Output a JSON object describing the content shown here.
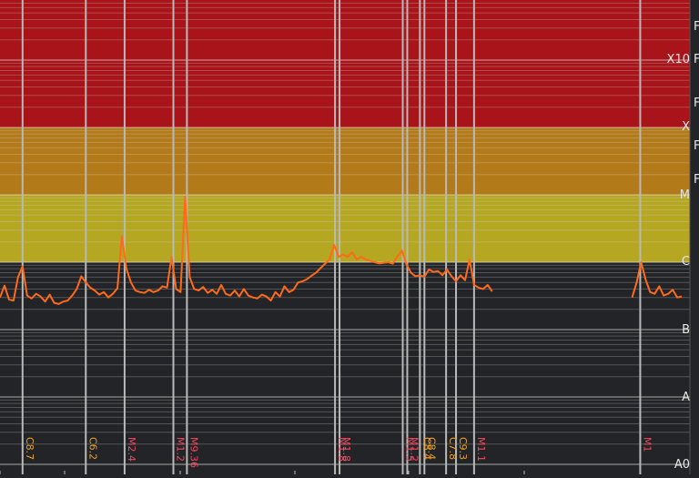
{
  "chart_data": {
    "type": "line",
    "title": "",
    "xlabel": "",
    "ylabel": "",
    "y_scale": "log",
    "yaxis_classes": [
      "A0",
      "A",
      "B",
      "C",
      "M",
      "X",
      "X10"
    ],
    "right_edge_letters": [
      "F",
      "F",
      "F",
      "F",
      "F"
    ],
    "class_bands": [
      {
        "class": "M",
        "color": "#b5a722"
      },
      {
        "class": "X",
        "color": "#b37a1a"
      },
      {
        "class": "X10",
        "color": "#a8141a"
      }
    ],
    "series": [
      {
        "color": "#ff6a1a",
        "segments": [
          [
            [
              0,
              "C3.0"
            ],
            [
              1,
              "C4.5"
            ],
            [
              2,
              "C2.8"
            ],
            [
              3,
              "C2.7"
            ],
            [
              4,
              "C6.0"
            ],
            [
              5,
              "C8.7"
            ],
            [
              6,
              "C3.2"
            ],
            [
              7,
              "C2.9"
            ],
            [
              8,
              "C3.4"
            ],
            [
              9,
              "C3.1"
            ],
            [
              10,
              "C2.6"
            ],
            [
              11,
              "C3.3"
            ],
            [
              12,
              "C2.5"
            ],
            [
              13,
              "C2.4"
            ],
            [
              14,
              "C2.6"
            ],
            [
              15,
              "C2.7"
            ],
            [
              16,
              "C3.2"
            ],
            [
              17,
              "C4.0"
            ],
            [
              18,
              "C6.2"
            ],
            [
              19,
              "C5.0"
            ],
            [
              20,
              "C4.2"
            ],
            [
              21,
              "C3.8"
            ],
            [
              22,
              "C3.3"
            ],
            [
              23,
              "C3.6"
            ],
            [
              24,
              "C3.0"
            ],
            [
              25,
              "C3.4"
            ],
            [
              26,
              "C4.1"
            ],
            [
              27,
              "M2.4"
            ],
            [
              28,
              "C8.0"
            ],
            [
              29,
              "C5.0"
            ],
            [
              30,
              "C3.8"
            ],
            [
              31,
              "C3.6"
            ],
            [
              32,
              "C3.5"
            ],
            [
              33,
              "C3.9"
            ],
            [
              34,
              "C3.6"
            ],
            [
              35,
              "C3.8"
            ],
            [
              36,
              "C4.4"
            ],
            [
              37,
              "C4.2"
            ],
            [
              38,
              "M1.2"
            ],
            [
              39,
              "C4.0"
            ],
            [
              40,
              "C3.6"
            ],
            [
              41,
              "M9.36"
            ],
            [
              42,
              "C6.0"
            ],
            [
              43,
              "C4.0"
            ],
            [
              44,
              "C3.8"
            ],
            [
              45,
              "C4.3"
            ],
            [
              46,
              "C3.5"
            ],
            [
              47,
              "C3.9"
            ],
            [
              48,
              "C3.4"
            ],
            [
              49,
              "C4.6"
            ],
            [
              50,
              "C3.4"
            ],
            [
              51,
              "C3.2"
            ],
            [
              52,
              "C3.8"
            ],
            [
              53,
              "C3.1"
            ],
            [
              54,
              "C4.0"
            ],
            [
              55,
              "C3.2"
            ],
            [
              56,
              "C3.0"
            ],
            [
              57,
              "C2.9"
            ],
            [
              58,
              "C3.3"
            ],
            [
              59,
              "C3.1"
            ],
            [
              60,
              "C2.7"
            ],
            [
              61,
              "C3.6"
            ],
            [
              62,
              "C3.1"
            ],
            [
              63,
              "C4.4"
            ],
            [
              64,
              "C3.6"
            ],
            [
              65,
              "C3.9"
            ],
            [
              66,
              "C5.0"
            ],
            [
              67,
              "C5.2"
            ],
            [
              68,
              "C5.6"
            ],
            [
              69,
              "C6.3"
            ],
            [
              70,
              "C7.0"
            ],
            [
              71,
              "C8.2"
            ],
            [
              72,
              "C9.5"
            ],
            [
              73,
              "M1.1"
            ],
            [
              74,
              "M1.8"
            ],
            [
              75,
              "M1.2"
            ],
            [
              76,
              "M1.3"
            ],
            [
              77,
              "M1.2"
            ],
            [
              78,
              "M1.4"
            ],
            [
              79,
              "M1.1"
            ],
            [
              80,
              "M1.2"
            ],
            [
              81,
              "M1.1"
            ],
            [
              82,
              "M1.05"
            ],
            [
              83,
              "M1.0"
            ],
            [
              84,
              "C9.6"
            ],
            [
              85,
              "C9.8"
            ],
            [
              86,
              "M1.0"
            ],
            [
              87,
              "C9.5"
            ],
            [
              88,
              "M1.2"
            ],
            [
              89,
              "M1.5"
            ],
            [
              90,
              "C9.4"
            ],
            [
              91,
              "C7.0"
            ],
            [
              92,
              "C6.2"
            ],
            [
              93,
              "C6.4"
            ],
            [
              94,
              "C6.1"
            ],
            [
              95,
              "C7.8"
            ],
            [
              96,
              "C7.2"
            ],
            [
              97,
              "C7.4"
            ],
            [
              98,
              "C6.4"
            ],
            [
              99,
              "C7.8"
            ],
            [
              100,
              "C6.2"
            ],
            [
              101,
              "C5.2"
            ],
            [
              102,
              "C6.4"
            ],
            [
              103,
              "C5.4"
            ],
            [
              104,
              "M1.1"
            ],
            [
              105,
              "C4.6"
            ],
            [
              106,
              "C4.2"
            ],
            [
              107,
              "C4.0"
            ],
            [
              108,
              "C4.6"
            ],
            [
              109,
              "C3.7"
            ]
          ],
          [
            [
              140,
              "C3.0"
            ],
            [
              141,
              "C5.0"
            ],
            [
              142,
              "M1.0"
            ],
            [
              143,
              "C5.5"
            ],
            [
              144,
              "C3.6"
            ],
            [
              145,
              "C3.4"
            ],
            [
              146,
              "C4.4"
            ],
            [
              147,
              "C3.2"
            ],
            [
              148,
              "C3.4"
            ],
            [
              149,
              "C3.9"
            ],
            [
              150,
              "C3.0"
            ],
            [
              151,
              "C3.1"
            ]
          ]
        ]
      }
    ],
    "flares": [
      {
        "label": "C8.7",
        "x": 5,
        "color": "#f0a020"
      },
      {
        "label": "C6.2",
        "x": 19,
        "color": "#f0a020"
      },
      {
        "label": "M2.4",
        "x": 27.6,
        "color": "#ef4a5e"
      },
      {
        "label": "M1.2",
        "x": 38.4,
        "color": "#ef4a5e"
      },
      {
        "label": "M9.36",
        "x": 41.4,
        "color": "#ef4a5e"
      },
      {
        "label": "M1.8",
        "x": 74.2,
        "color": "#ef4a5e"
      },
      {
        "label": "M1.8",
        "x": 75.2,
        "color": "#ef4a5e"
      },
      {
        "label": "M1.5",
        "x": 89.2,
        "color": "#ef4a5e"
      },
      {
        "label": "M1.2",
        "x": 90.2,
        "color": "#ef4a5e"
      },
      {
        "label": "C8.4",
        "x": 93,
        "color": "#f0a020"
      },
      {
        "label": "C8.4",
        "x": 94,
        "color": "#f0a020"
      },
      {
        "label": "C7.8",
        "x": 98.8,
        "color": "#f0a020"
      },
      {
        "label": "C9.3",
        "x": 101,
        "color": "#f0a020"
      },
      {
        "label": "M1.1",
        "x": 105,
        "color": "#ef4a5e"
      },
      {
        "label": "M1",
        "x": 141.8,
        "color": "#ef4a5e"
      }
    ],
    "grid": true,
    "legend": "none"
  }
}
